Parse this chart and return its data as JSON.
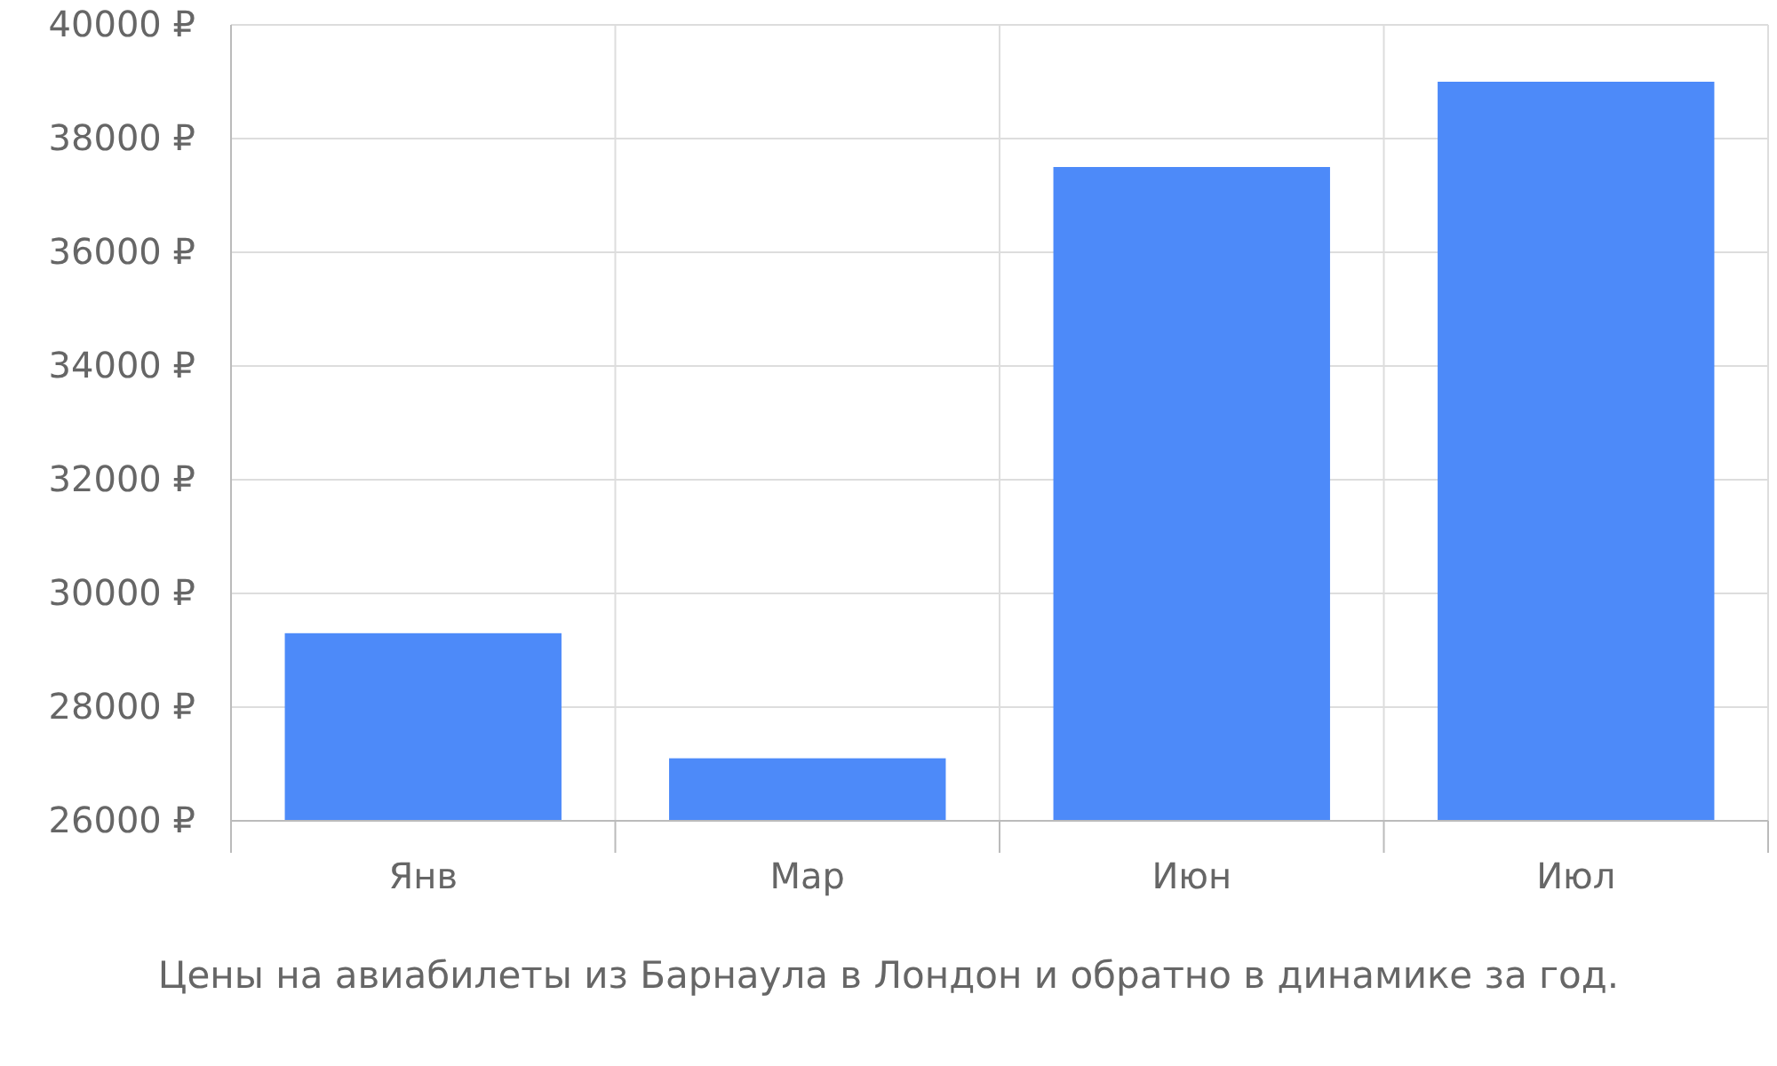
{
  "chart_data": {
    "type": "bar",
    "title": "Цены на авиабилеты из Барнаула в Лондон и обратно в динамике за год.",
    "categories": [
      "Янв",
      "Мар",
      "Июн",
      "Июл"
    ],
    "values": [
      29300,
      27100,
      37500,
      39000
    ],
    "color": "#4d8af9",
    "ylim": [
      26000,
      40000
    ],
    "yticks": [
      {
        "value": 26000,
        "label": "26000 ₽"
      },
      {
        "value": 28000,
        "label": "28000 ₽"
      },
      {
        "value": 30000,
        "label": "30000 ₽"
      },
      {
        "value": 32000,
        "label": "32000 ₽"
      },
      {
        "value": 34000,
        "label": "34000 ₽"
      },
      {
        "value": 36000,
        "label": "36000 ₽"
      },
      {
        "value": 38000,
        "label": "38000 ₽"
      },
      {
        "value": 40000,
        "label": "40000 ₽"
      }
    ],
    "grid": true
  }
}
